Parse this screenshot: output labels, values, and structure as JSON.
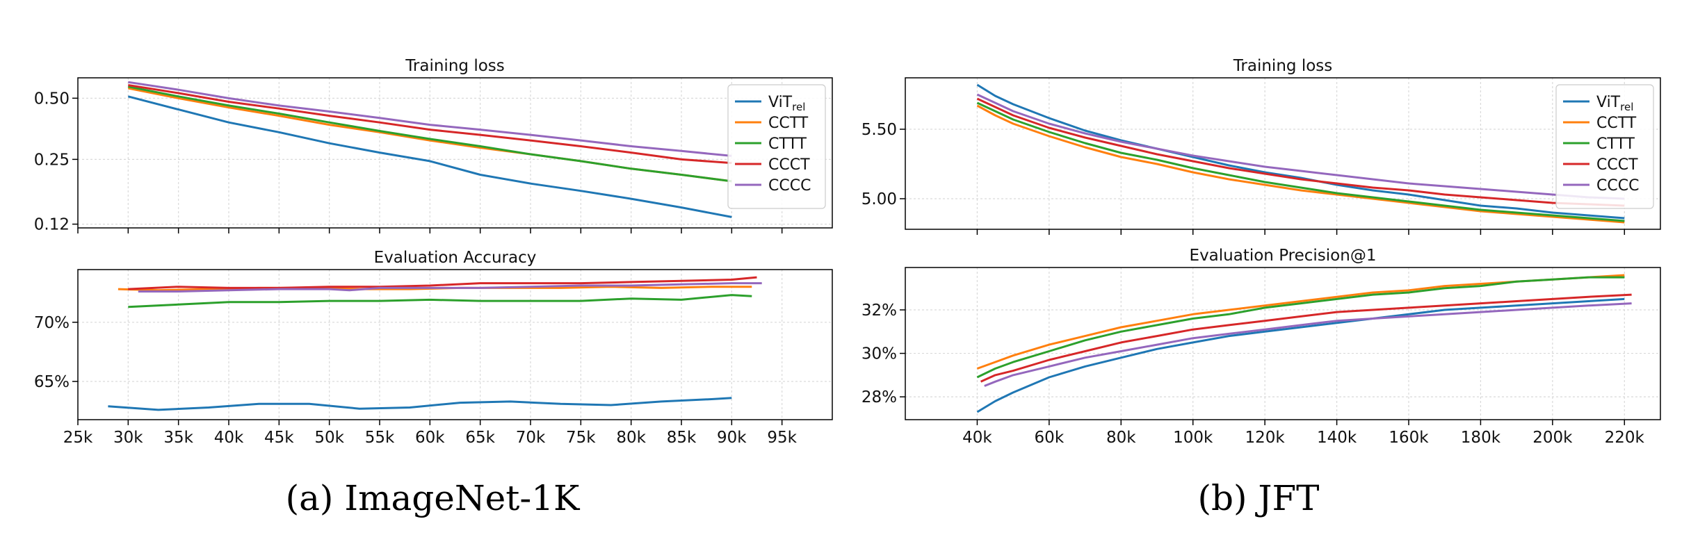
{
  "colors": {
    "ViT": "#1f77b4",
    "CCTT": "#ff7f0e",
    "CTTT": "#2ca02c",
    "CCCT": "#d62728",
    "CCCC": "#9467bd"
  },
  "captions": {
    "a": "(a) ImageNet-1K",
    "b": "(b) JFT"
  },
  "chart_data": [
    {
      "id": "imagenet-loss",
      "type": "line",
      "title": "Training loss",
      "yscale": "log",
      "ylim": [
        0.115,
        0.63
      ],
      "xlim": [
        25000,
        100000
      ],
      "yticks": [
        0.12,
        0.25,
        0.5
      ],
      "ytick_labels": [
        "0.12",
        "0.25",
        "0.50"
      ],
      "grid": true,
      "legend": "top-right",
      "series": [
        {
          "name": "ViT",
          "sub": "rel",
          "color_key": "ViT",
          "x": [
            30000,
            35000,
            40000,
            45000,
            50000,
            55000,
            60000,
            65000,
            70000,
            75000,
            80000,
            85000,
            90000
          ],
          "y": [
            0.51,
            0.44,
            0.38,
            0.34,
            0.3,
            0.27,
            0.245,
            0.21,
            0.19,
            0.175,
            0.16,
            0.145,
            0.13
          ]
        },
        {
          "name": "CCTT",
          "color_key": "CCTT",
          "x": [
            30000,
            35000,
            40000,
            45000,
            50000,
            55000,
            60000,
            65000,
            70000,
            75000,
            80000,
            85000,
            90000
          ],
          "y": [
            0.56,
            0.5,
            0.45,
            0.41,
            0.37,
            0.34,
            0.31,
            0.285,
            0.265,
            0.245,
            0.225,
            0.21,
            0.195
          ]
        },
        {
          "name": "CTTT",
          "color_key": "CTTT",
          "x": [
            30000,
            35000,
            40000,
            45000,
            50000,
            55000,
            60000,
            65000,
            70000,
            75000,
            80000,
            85000,
            90000
          ],
          "y": [
            0.57,
            0.51,
            0.46,
            0.42,
            0.38,
            0.345,
            0.315,
            0.29,
            0.265,
            0.245,
            0.225,
            0.21,
            0.195
          ]
        },
        {
          "name": "CCCT",
          "color_key": "CCCT",
          "x": [
            30000,
            35000,
            40000,
            45000,
            50000,
            55000,
            60000,
            65000,
            70000,
            75000,
            80000,
            85000,
            90000
          ],
          "y": [
            0.58,
            0.53,
            0.48,
            0.445,
            0.41,
            0.38,
            0.35,
            0.33,
            0.31,
            0.29,
            0.27,
            0.25,
            0.24
          ]
        },
        {
          "name": "CCCC",
          "color_key": "CCCC",
          "x": [
            30000,
            35000,
            40000,
            45000,
            50000,
            55000,
            60000,
            65000,
            70000,
            75000,
            80000,
            85000,
            90000
          ],
          "y": [
            0.6,
            0.55,
            0.5,
            0.46,
            0.43,
            0.4,
            0.37,
            0.35,
            0.33,
            0.31,
            0.29,
            0.275,
            0.26
          ]
        }
      ]
    },
    {
      "id": "imagenet-acc",
      "type": "line",
      "title": "Evaluation Accuracy",
      "ylim": [
        0.6177,
        0.7445
      ],
      "xlim": [
        25000,
        100000
      ],
      "yticks": [
        0.65,
        0.7
      ],
      "ytick_labels": [
        "65%",
        "70%"
      ],
      "xticks": [
        25000,
        30000,
        35000,
        40000,
        45000,
        50000,
        55000,
        60000,
        65000,
        70000,
        75000,
        80000,
        85000,
        90000,
        95000
      ],
      "xtick_labels": [
        "25k",
        "30k",
        "35k",
        "40k",
        "45k",
        "50k",
        "55k",
        "60k",
        "65k",
        "70k",
        "75k",
        "80k",
        "85k",
        "90k",
        "95k"
      ],
      "grid": true,
      "series": [
        {
          "name": "ViT",
          "color_key": "ViT",
          "x": [
            28000,
            33000,
            38000,
            43000,
            48000,
            53000,
            58000,
            63000,
            68000,
            73000,
            78000,
            83000,
            88000,
            90000
          ],
          "y": [
            0.629,
            0.626,
            0.628,
            0.631,
            0.631,
            0.627,
            0.628,
            0.632,
            0.633,
            0.631,
            0.63,
            0.633,
            0.635,
            0.636
          ]
        },
        {
          "name": "CCTT",
          "color_key": "CCTT",
          "x": [
            29000,
            33000,
            38000,
            43000,
            48000,
            53000,
            58000,
            63000,
            68000,
            73000,
            78000,
            83000,
            88000,
            92000
          ],
          "y": [
            0.728,
            0.727,
            0.728,
            0.729,
            0.729,
            0.728,
            0.728,
            0.729,
            0.729,
            0.729,
            0.73,
            0.729,
            0.73,
            0.73
          ]
        },
        {
          "name": "CTTT",
          "color_key": "CTTT",
          "x": [
            30000,
            35000,
            40000,
            45000,
            50000,
            55000,
            60000,
            65000,
            70000,
            75000,
            80000,
            85000,
            90000,
            92000
          ],
          "y": [
            0.713,
            0.715,
            0.717,
            0.717,
            0.718,
            0.718,
            0.719,
            0.718,
            0.718,
            0.718,
            0.72,
            0.719,
            0.723,
            0.722
          ]
        },
        {
          "name": "CCCT",
          "color_key": "CCCT",
          "x": [
            30000,
            35000,
            40000,
            45000,
            50000,
            55000,
            60000,
            65000,
            70000,
            75000,
            80000,
            85000,
            90000,
            92500
          ],
          "y": [
            0.728,
            0.73,
            0.729,
            0.729,
            0.73,
            0.73,
            0.731,
            0.733,
            0.733,
            0.733,
            0.734,
            0.735,
            0.736,
            0.738
          ]
        },
        {
          "name": "CCCC",
          "color_key": "CCCC",
          "x": [
            31000,
            35000,
            40000,
            45000,
            50000,
            52000,
            55000,
            60000,
            65000,
            70000,
            75000,
            80000,
            85000,
            90000,
            93000
          ],
          "y": [
            0.726,
            0.726,
            0.727,
            0.728,
            0.728,
            0.727,
            0.729,
            0.729,
            0.729,
            0.73,
            0.731,
            0.731,
            0.732,
            0.733,
            0.733
          ]
        }
      ]
    },
    {
      "id": "jft-loss",
      "type": "line",
      "title": "Training loss",
      "ylim": [
        4.78,
        5.87
      ],
      "xlim": [
        20000,
        230000
      ],
      "yticks": [
        5.0,
        5.5
      ],
      "ytick_labels": [
        "5.00",
        "5.50"
      ],
      "grid": true,
      "legend": "top-right",
      "series": [
        {
          "name": "ViT",
          "sub": "rel",
          "color_key": "ViT",
          "x": [
            40000,
            45000,
            50000,
            60000,
            70000,
            80000,
            90000,
            100000,
            110000,
            120000,
            130000,
            140000,
            150000,
            160000,
            170000,
            180000,
            190000,
            200000,
            210000,
            220000
          ],
          "y": [
            5.82,
            5.74,
            5.68,
            5.58,
            5.49,
            5.42,
            5.36,
            5.3,
            5.24,
            5.19,
            5.15,
            5.1,
            5.06,
            5.03,
            4.99,
            4.95,
            4.93,
            4.9,
            4.88,
            4.86
          ]
        },
        {
          "name": "CCTT",
          "color_key": "CCTT",
          "x": [
            40000,
            45000,
            50000,
            60000,
            70000,
            80000,
            90000,
            100000,
            110000,
            120000,
            130000,
            140000,
            150000,
            160000,
            170000,
            180000,
            190000,
            200000,
            210000,
            220000
          ],
          "y": [
            5.67,
            5.6,
            5.54,
            5.45,
            5.37,
            5.3,
            5.25,
            5.19,
            5.14,
            5.1,
            5.06,
            5.03,
            5.0,
            4.97,
            4.94,
            4.91,
            4.89,
            4.87,
            4.85,
            4.83
          ]
        },
        {
          "name": "CTTT",
          "color_key": "CTTT",
          "x": [
            40000,
            45000,
            50000,
            60000,
            70000,
            80000,
            90000,
            100000,
            110000,
            120000,
            130000,
            140000,
            150000,
            160000,
            170000,
            180000,
            190000,
            200000,
            210000,
            220000
          ],
          "y": [
            5.69,
            5.63,
            5.57,
            5.48,
            5.4,
            5.33,
            5.28,
            5.22,
            5.17,
            5.12,
            5.08,
            5.04,
            5.01,
            4.98,
            4.95,
            4.92,
            4.9,
            4.88,
            4.86,
            4.84
          ]
        },
        {
          "name": "CCCT",
          "color_key": "CCCT",
          "x": [
            40000,
            45000,
            50000,
            60000,
            70000,
            80000,
            90000,
            100000,
            110000,
            120000,
            130000,
            140000,
            150000,
            160000,
            170000,
            180000,
            190000,
            200000,
            210000,
            220000
          ],
          "y": [
            5.72,
            5.66,
            5.6,
            5.51,
            5.44,
            5.38,
            5.32,
            5.27,
            5.22,
            5.18,
            5.14,
            5.11,
            5.08,
            5.06,
            5.03,
            5.01,
            4.99,
            4.97,
            4.96,
            4.95
          ]
        },
        {
          "name": "CCCC",
          "color_key": "CCCC",
          "x": [
            40000,
            45000,
            50000,
            60000,
            70000,
            80000,
            90000,
            100000,
            110000,
            120000,
            130000,
            140000,
            150000,
            160000,
            170000,
            180000,
            190000,
            200000,
            210000,
            220000
          ],
          "y": [
            5.75,
            5.69,
            5.63,
            5.54,
            5.47,
            5.41,
            5.36,
            5.31,
            5.27,
            5.23,
            5.2,
            5.17,
            5.14,
            5.11,
            5.09,
            5.07,
            5.05,
            5.03,
            5.01,
            5.0
          ]
        }
      ]
    },
    {
      "id": "jft-precision",
      "type": "line",
      "title": "Evaluation Precision@1",
      "ylim": [
        0.2695,
        0.3395
      ],
      "xlim": [
        20000,
        230000
      ],
      "yticks": [
        0.28,
        0.3,
        0.32
      ],
      "ytick_labels": [
        "28%",
        "30%",
        "32%"
      ],
      "xticks": [
        40000,
        60000,
        80000,
        100000,
        120000,
        140000,
        160000,
        180000,
        200000,
        220000
      ],
      "xtick_labels": [
        "40k",
        "60k",
        "80k",
        "100k",
        "120k",
        "140k",
        "160k",
        "180k",
        "200k",
        "220k"
      ],
      "grid": true,
      "series": [
        {
          "name": "ViT",
          "color_key": "ViT",
          "x": [
            40000,
            45000,
            50000,
            60000,
            70000,
            80000,
            90000,
            100000,
            110000,
            120000,
            130000,
            140000,
            150000,
            160000,
            170000,
            180000,
            190000,
            200000,
            210000,
            220000
          ],
          "y": [
            0.273,
            0.278,
            0.282,
            0.289,
            0.294,
            0.298,
            0.302,
            0.305,
            0.308,
            0.31,
            0.312,
            0.314,
            0.316,
            0.318,
            0.32,
            0.321,
            0.322,
            0.323,
            0.324,
            0.325
          ]
        },
        {
          "name": "CCTT",
          "color_key": "CCTT",
          "x": [
            40000,
            45000,
            50000,
            60000,
            70000,
            80000,
            90000,
            100000,
            110000,
            120000,
            130000,
            140000,
            150000,
            160000,
            170000,
            180000,
            190000,
            200000,
            210000,
            220000
          ],
          "y": [
            0.293,
            0.296,
            0.299,
            0.304,
            0.308,
            0.312,
            0.315,
            0.318,
            0.32,
            0.322,
            0.324,
            0.326,
            0.328,
            0.329,
            0.331,
            0.332,
            0.333,
            0.334,
            0.335,
            0.336
          ]
        },
        {
          "name": "CTTT",
          "color_key": "CTTT",
          "x": [
            40000,
            45000,
            50000,
            60000,
            70000,
            80000,
            90000,
            100000,
            110000,
            120000,
            130000,
            140000,
            150000,
            160000,
            170000,
            180000,
            190000,
            200000,
            210000,
            220000
          ],
          "y": [
            0.289,
            0.293,
            0.296,
            0.301,
            0.306,
            0.31,
            0.313,
            0.316,
            0.318,
            0.321,
            0.323,
            0.325,
            0.327,
            0.328,
            0.33,
            0.331,
            0.333,
            0.334,
            0.335,
            0.335
          ]
        },
        {
          "name": "CCCT",
          "color_key": "CCCT",
          "x": [
            41000,
            45000,
            50000,
            60000,
            70000,
            80000,
            90000,
            100000,
            110000,
            120000,
            130000,
            140000,
            150000,
            160000,
            170000,
            180000,
            190000,
            200000,
            210000,
            222000
          ],
          "y": [
            0.287,
            0.29,
            0.292,
            0.297,
            0.301,
            0.305,
            0.308,
            0.311,
            0.313,
            0.315,
            0.317,
            0.319,
            0.32,
            0.321,
            0.322,
            0.323,
            0.324,
            0.325,
            0.326,
            0.327
          ]
        },
        {
          "name": "CCCC",
          "color_key": "CCCC",
          "x": [
            42000,
            45000,
            50000,
            60000,
            70000,
            80000,
            90000,
            100000,
            110000,
            120000,
            130000,
            140000,
            150000,
            160000,
            170000,
            180000,
            190000,
            200000,
            210000,
            222000
          ],
          "y": [
            0.285,
            0.287,
            0.29,
            0.294,
            0.298,
            0.301,
            0.304,
            0.307,
            0.309,
            0.311,
            0.313,
            0.315,
            0.316,
            0.317,
            0.318,
            0.319,
            0.32,
            0.321,
            0.322,
            0.323
          ]
        }
      ]
    }
  ]
}
